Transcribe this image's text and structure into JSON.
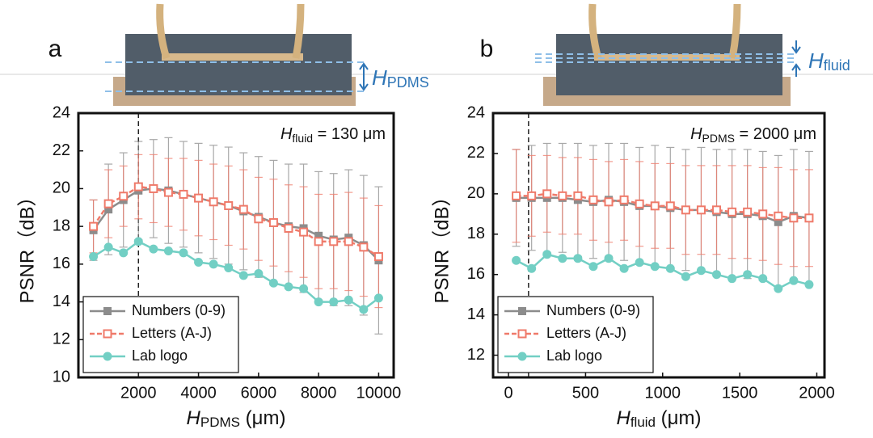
{
  "chart_data": [
    {
      "type": "line",
      "panel": "a",
      "schematic_label": {
        "main": "H",
        "sub": "PDMS"
      },
      "annotation": {
        "main": "H",
        "sub": "fluid",
        "rest": " = 130 μm"
      },
      "xlabel": {
        "main": "H",
        "sub": "PDMS",
        "rest": " (μm)"
      },
      "ylabel": "PSNR（dB）",
      "x": [
        500,
        1000,
        1500,
        2000,
        2500,
        3000,
        3500,
        4000,
        4500,
        5000,
        5500,
        6000,
        6500,
        7000,
        7500,
        8000,
        8500,
        9000,
        9500,
        10000
      ],
      "series": [
        {
          "name": "Numbers (0-9)",
          "color": "#8c8c8c",
          "marker": "square",
          "values": [
            17.8,
            18.9,
            19.4,
            19.9,
            20.0,
            19.9,
            19.7,
            19.5,
            19.3,
            19.1,
            18.8,
            18.5,
            18.2,
            18.0,
            17.9,
            17.5,
            17.3,
            17.4,
            17.0,
            16.2
          ],
          "errors": [
            1.6,
            2.4,
            2.5,
            2.6,
            2.6,
            2.8,
            2.8,
            2.9,
            3.0,
            3.1,
            3.1,
            3.2,
            3.3,
            3.3,
            3.4,
            3.4,
            3.5,
            3.6,
            3.7,
            3.9
          ]
        },
        {
          "name": "Letters (A-J)",
          "color": "#ef7a6a",
          "marker": "open-square",
          "values": [
            18.0,
            19.2,
            19.6,
            20.1,
            20.0,
            19.8,
            19.7,
            19.5,
            19.3,
            19.1,
            18.9,
            18.4,
            18.2,
            17.9,
            17.7,
            17.2,
            17.2,
            17.2,
            16.9,
            16.4
          ],
          "errors": [
            1.4,
            1.8,
            1.6,
            1.7,
            1.8,
            1.8,
            1.9,
            2.0,
            2.0,
            2.1,
            2.1,
            2.2,
            2.3,
            2.3,
            2.4,
            2.5,
            2.5,
            2.6,
            2.6,
            2.7
          ]
        },
        {
          "name": "Lab logo",
          "color": "#72cfc4",
          "marker": "circle",
          "values": [
            16.4,
            16.9,
            16.6,
            17.2,
            16.8,
            16.7,
            16.6,
            16.1,
            16.0,
            15.8,
            15.4,
            15.5,
            15.0,
            14.8,
            14.7,
            14.0,
            14.0,
            14.1,
            13.6,
            14.2
          ]
        }
      ],
      "xlim": [
        0,
        10500
      ],
      "xticks": [
        2000,
        4000,
        6000,
        8000,
        10000
      ],
      "ylim": [
        10,
        24
      ],
      "yticks": [
        10,
        12,
        14,
        16,
        18,
        20,
        22,
        24
      ],
      "vline": 2000,
      "legend": "lower left"
    },
    {
      "type": "line",
      "panel": "b",
      "schematic_label": {
        "main": "H",
        "sub": "fluid"
      },
      "annotation": {
        "main": "H",
        "sub": "PDMS",
        "rest": " = 2000 μm"
      },
      "xlabel": {
        "main": "H",
        "sub": "fluid",
        "rest": " (μm)"
      },
      "ylabel": "PSNR（dB）",
      "x": [
        50,
        150,
        250,
        350,
        450,
        550,
        650,
        750,
        850,
        950,
        1050,
        1150,
        1250,
        1350,
        1450,
        1550,
        1650,
        1750,
        1850,
        1950
      ],
      "series": [
        {
          "name": "Numbers (0-9)",
          "color": "#8c8c8c",
          "marker": "square",
          "values": [
            19.8,
            19.8,
            19.8,
            19.8,
            19.7,
            19.6,
            19.7,
            19.6,
            19.4,
            19.4,
            19.3,
            19.2,
            19.2,
            19.1,
            19.0,
            19.0,
            18.9,
            18.6,
            18.9,
            18.8
          ],
          "errors": [
            2.4,
            2.6,
            2.7,
            2.7,
            2.8,
            2.8,
            2.8,
            2.9,
            2.9,
            3.0,
            3.0,
            3.0,
            3.1,
            3.1,
            3.2,
            3.2,
            3.2,
            3.3,
            3.3,
            3.3
          ]
        },
        {
          "name": "Letters (A-J)",
          "color": "#ef7a6a",
          "marker": "open-square",
          "values": [
            19.9,
            19.9,
            20.0,
            19.9,
            19.9,
            19.7,
            19.6,
            19.7,
            19.5,
            19.4,
            19.4,
            19.2,
            19.2,
            19.2,
            19.1,
            19.1,
            19.0,
            18.9,
            18.8,
            18.8
          ],
          "errors": [
            2.3,
            2.0,
            1.9,
            1.9,
            1.9,
            2.0,
            2.0,
            2.0,
            2.1,
            2.1,
            2.1,
            2.2,
            2.2,
            2.2,
            2.3,
            2.3,
            2.3,
            2.4,
            2.4,
            2.4
          ]
        },
        {
          "name": "Lab logo",
          "color": "#72cfc4",
          "marker": "circle",
          "values": [
            16.7,
            16.3,
            17.0,
            16.8,
            16.8,
            16.4,
            16.8,
            16.3,
            16.6,
            16.4,
            16.3,
            15.9,
            16.2,
            16.0,
            15.8,
            16.0,
            15.8,
            15.3,
            15.7,
            15.5
          ]
        }
      ],
      "xlim": [
        -100,
        2050
      ],
      "xticks": [
        0,
        500,
        1000,
        1500,
        2000
      ],
      "ylim": [
        10.9,
        24
      ],
      "yticks": [
        12,
        14,
        16,
        18,
        20,
        22,
        24
      ],
      "vline": 130,
      "legend": "lower left"
    }
  ]
}
